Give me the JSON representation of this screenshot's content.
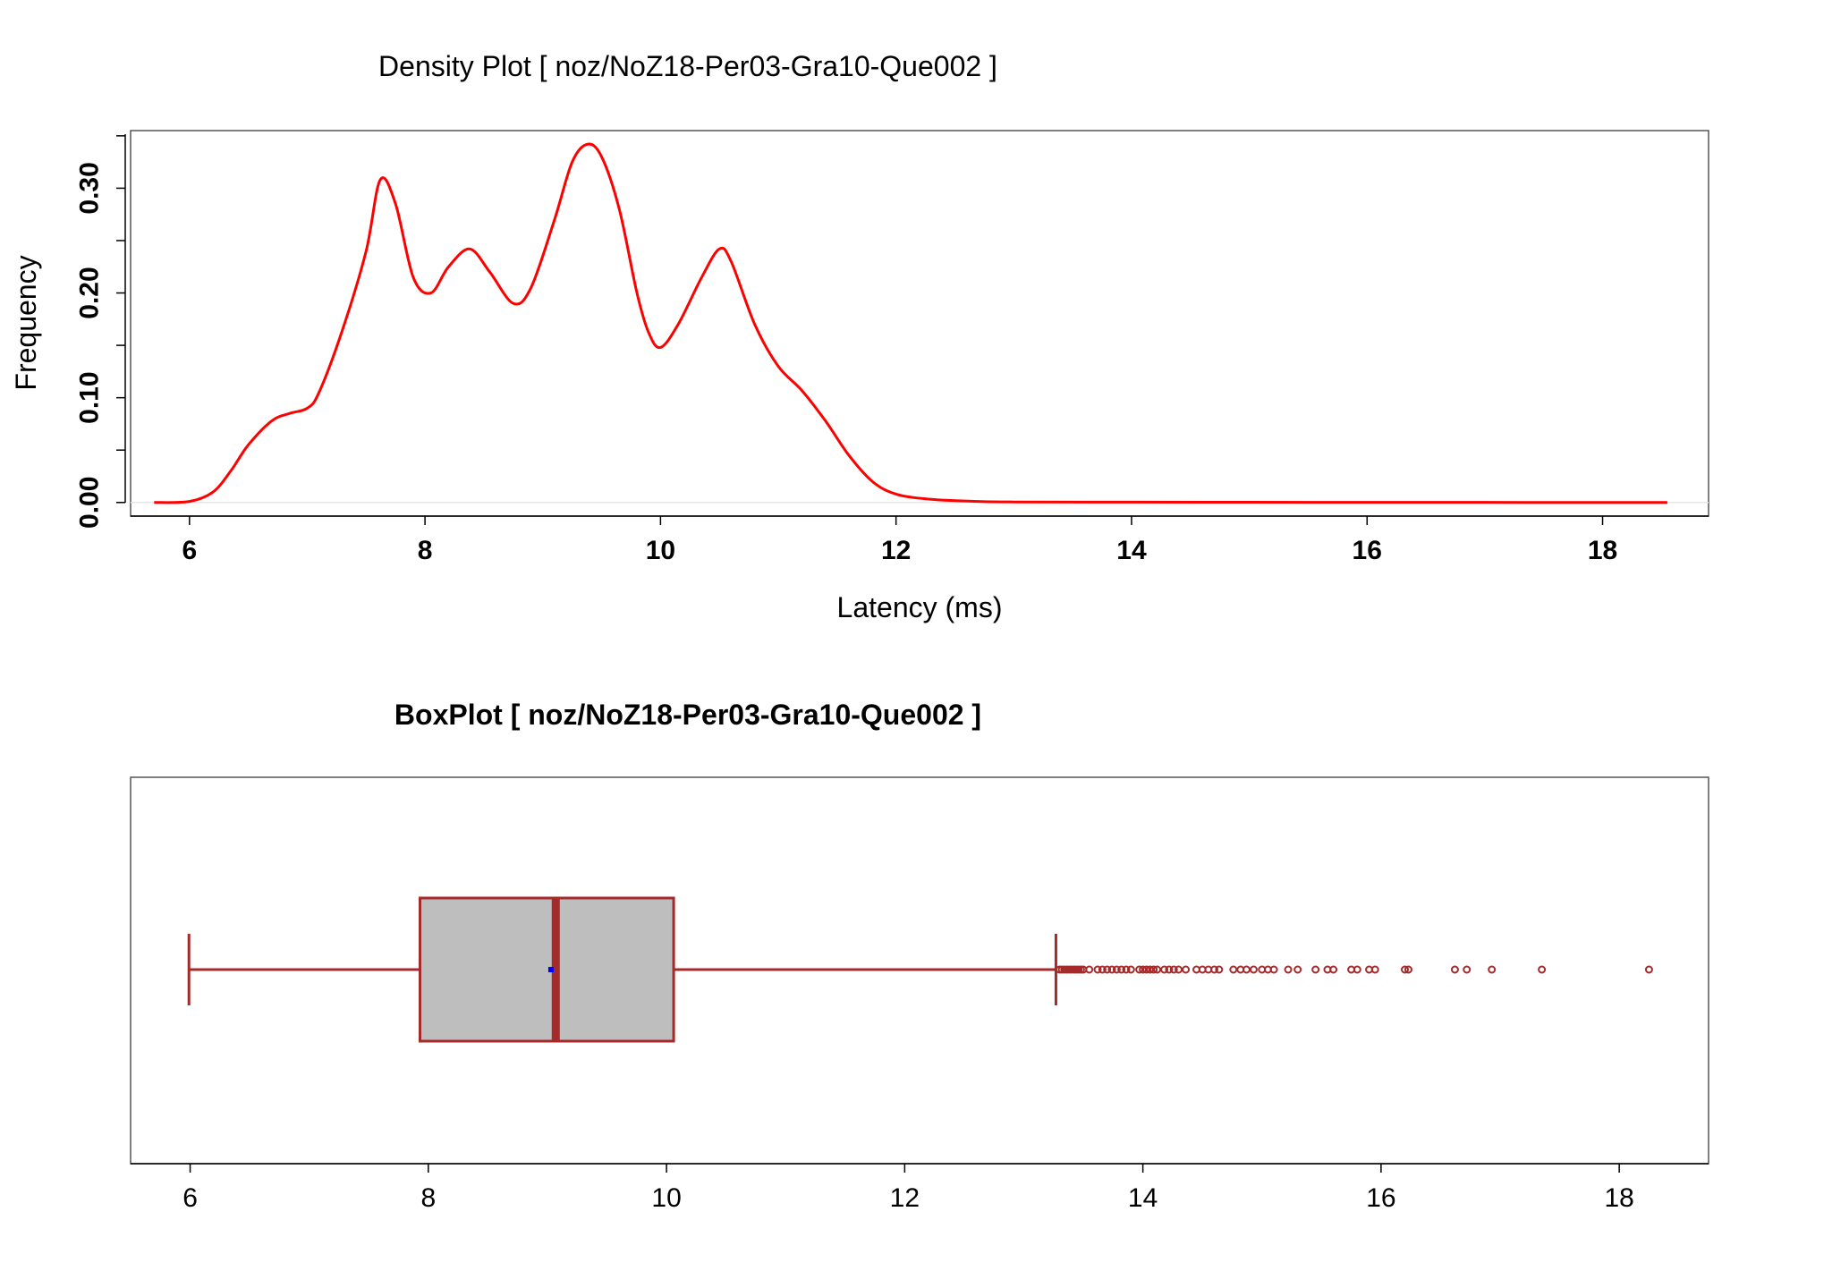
{
  "chart_data": [
    {
      "type": "line",
      "title": "Density Plot [ noz/NoZ18-Per03-Gra10-Que002 ]",
      "xlabel": "Latency (ms)",
      "ylabel": "Frequency",
      "xlim": [
        5.5,
        18.9
      ],
      "ylim": [
        -0.013,
        0.355
      ],
      "x_ticks": [
        6,
        8,
        10,
        12,
        14,
        16,
        18
      ],
      "y_ticks": [
        0.0,
        0.1,
        0.2,
        0.3
      ],
      "x_tick_labels": [
        "6",
        "8",
        "10",
        "12",
        "14",
        "16",
        "18"
      ],
      "y_tick_labels": [
        "0.00",
        "0.10",
        "0.20",
        "0.30"
      ],
      "line_color": "#ff0000",
      "series": [
        {
          "x": [
            5.7,
            6.0,
            6.2,
            6.35,
            6.5,
            6.7,
            6.85,
            7.0,
            7.1,
            7.3,
            7.5,
            7.62,
            7.75,
            7.9,
            8.05,
            8.2,
            8.38,
            8.55,
            8.75,
            8.9,
            9.1,
            9.25,
            9.38,
            9.5,
            9.65,
            9.8,
            9.9,
            10.0,
            10.15,
            10.35,
            10.5,
            10.6,
            10.8,
            11.0,
            11.2,
            11.4,
            11.6,
            11.8,
            12.0,
            12.3,
            12.7,
            13.0,
            14.0,
            15.0,
            16.0,
            17.0,
            18.0,
            18.55
          ],
          "y": [
            0.0,
            0.001,
            0.01,
            0.03,
            0.055,
            0.078,
            0.085,
            0.09,
            0.105,
            0.165,
            0.24,
            0.308,
            0.285,
            0.215,
            0.2,
            0.225,
            0.242,
            0.22,
            0.19,
            0.205,
            0.27,
            0.325,
            0.342,
            0.33,
            0.28,
            0.2,
            0.162,
            0.148,
            0.17,
            0.215,
            0.242,
            0.23,
            0.17,
            0.13,
            0.107,
            0.078,
            0.045,
            0.02,
            0.008,
            0.003,
            0.001,
            0.0005,
            0.0003,
            0.0002,
            0.0001,
            0.0001,
            0.0,
            0.0
          ]
        }
      ]
    },
    {
      "type": "box",
      "title": "BoxPlot [ noz/NoZ18-Per03-Gra10-Que002 ]",
      "xlim": [
        5.5,
        18.75
      ],
      "x_ticks": [
        6,
        8,
        10,
        12,
        14,
        16,
        18
      ],
      "x_tick_labels": [
        "6",
        "8",
        "10",
        "12",
        "14",
        "16",
        "18"
      ],
      "whisker_low": 5.99,
      "q1": 7.93,
      "median": 9.07,
      "q3": 10.06,
      "whisker_high": 13.27,
      "mean": 9.03,
      "box_fill": "#bebebe",
      "line_color": "#a52a2a",
      "mean_color": "#0000ff",
      "outliers": [
        13.3,
        13.32,
        13.34,
        13.36,
        13.38,
        13.4,
        13.42,
        13.44,
        13.46,
        13.48,
        13.5,
        13.55,
        13.62,
        13.66,
        13.7,
        13.74,
        13.78,
        13.82,
        13.86,
        13.9,
        13.97,
        14.0,
        14.03,
        14.06,
        14.09,
        14.12,
        14.18,
        14.22,
        14.26,
        14.3,
        14.36,
        14.45,
        14.5,
        14.55,
        14.6,
        14.64,
        14.76,
        14.82,
        14.87,
        14.93,
        15.0,
        15.05,
        15.1,
        15.22,
        15.3,
        15.45,
        15.55,
        15.6,
        15.75,
        15.8,
        15.9,
        15.95,
        16.2,
        16.23,
        16.62,
        16.72,
        16.93,
        17.35,
        18.25
      ]
    }
  ]
}
